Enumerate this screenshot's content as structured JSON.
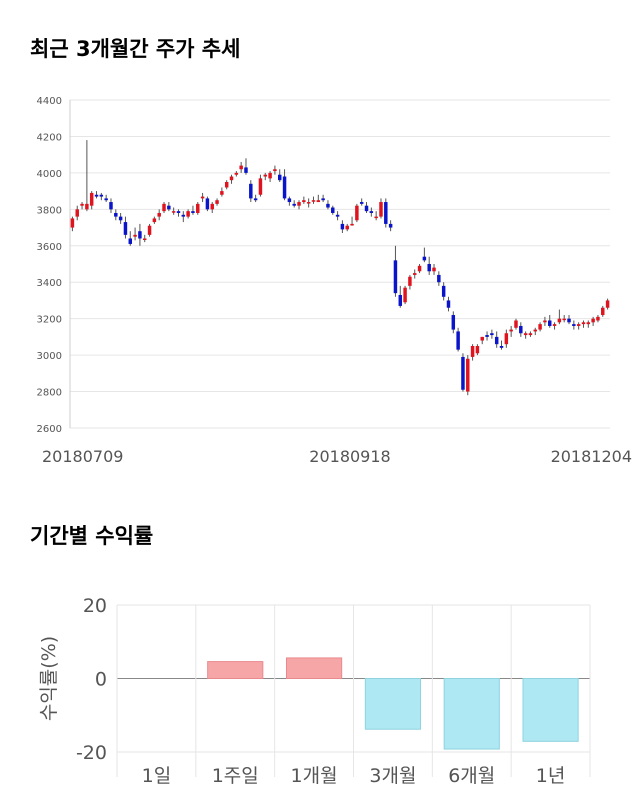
{
  "titles": {
    "price": "최근 3개월간 주가 추세",
    "returns": "기간별 수익률"
  },
  "colors": {
    "up": "#e0141e",
    "down": "#0a14c8",
    "positive_bar": "#f7a6a8",
    "negative_bar": "#aee8f2",
    "grid": "#e6e6e6"
  },
  "chart_data": [
    {
      "type": "candlestick",
      "title": "최근 3개월간 주가 추세",
      "ylim": [
        2600,
        4400
      ],
      "yticks": [
        2600,
        2800,
        3000,
        3200,
        3400,
        3600,
        3800,
        4000,
        4200,
        4400
      ],
      "xtick_labels": [
        "20180709",
        "20180918",
        "20181204"
      ],
      "grid": true,
      "candles": [
        [
          3700,
          3760,
          3680,
          3750
        ],
        [
          3760,
          3820,
          3740,
          3800
        ],
        [
          3820,
          3840,
          3800,
          3830
        ],
        [
          3800,
          4180,
          3790,
          3830
        ],
        [
          3820,
          3900,
          3800,
          3890
        ],
        [
          3880,
          3900,
          3860,
          3870
        ],
        [
          3880,
          3890,
          3850,
          3870
        ],
        [
          3860,
          3880,
          3840,
          3850
        ],
        [
          3840,
          3860,
          3780,
          3800
        ],
        [
          3780,
          3800,
          3740,
          3760
        ],
        [
          3760,
          3780,
          3720,
          3740
        ],
        [
          3730,
          3760,
          3640,
          3660
        ],
        [
          3640,
          3680,
          3600,
          3610
        ],
        [
          3650,
          3700,
          3630,
          3660
        ],
        [
          3680,
          3720,
          3600,
          3640
        ],
        [
          3640,
          3660,
          3620,
          3640
        ],
        [
          3660,
          3720,
          3650,
          3710
        ],
        [
          3730,
          3760,
          3720,
          3750
        ],
        [
          3760,
          3800,
          3740,
          3780
        ],
        [
          3790,
          3840,
          3780,
          3830
        ],
        [
          3820,
          3840,
          3790,
          3800
        ],
        [
          3790,
          3810,
          3770,
          3790
        ],
        [
          3790,
          3800,
          3760,
          3780
        ],
        [
          3770,
          3790,
          3730,
          3760
        ],
        [
          3760,
          3800,
          3750,
          3790
        ],
        [
          3790,
          3820,
          3770,
          3780
        ],
        [
          3780,
          3840,
          3770,
          3830
        ],
        [
          3860,
          3890,
          3840,
          3870
        ],
        [
          3860,
          3870,
          3790,
          3800
        ],
        [
          3800,
          3840,
          3780,
          3830
        ],
        [
          3830,
          3860,
          3820,
          3850
        ],
        [
          3880,
          3920,
          3870,
          3900
        ],
        [
          3920,
          3960,
          3910,
          3950
        ],
        [
          3960,
          3990,
          3940,
          3980
        ],
        [
          3990,
          4010,
          3980,
          4000
        ],
        [
          4020,
          4060,
          4000,
          4040
        ],
        [
          4030,
          4080,
          3990,
          4000
        ],
        [
          3940,
          3960,
          3840,
          3860
        ],
        [
          3860,
          3880,
          3840,
          3850
        ],
        [
          3880,
          3990,
          3870,
          3970
        ],
        [
          3980,
          4000,
          3960,
          3990
        ],
        [
          3970,
          4010,
          3950,
          4000
        ],
        [
          4010,
          4040,
          3990,
          4020
        ],
        [
          3990,
          4020,
          3950,
          3960
        ],
        [
          3980,
          4020,
          3850,
          3860
        ],
        [
          3860,
          3870,
          3820,
          3840
        ],
        [
          3830,
          3850,
          3810,
          3820
        ],
        [
          3820,
          3850,
          3800,
          3840
        ],
        [
          3840,
          3870,
          3830,
          3850
        ],
        [
          3840,
          3860,
          3810,
          3840
        ],
        [
          3850,
          3870,
          3830,
          3850
        ],
        [
          3840,
          3880,
          3840,
          3850
        ],
        [
          3860,
          3880,
          3840,
          3850
        ],
        [
          3830,
          3850,
          3800,
          3810
        ],
        [
          3810,
          3820,
          3770,
          3780
        ],
        [
          3770,
          3790,
          3740,
          3760
        ],
        [
          3720,
          3740,
          3670,
          3690
        ],
        [
          3690,
          3720,
          3680,
          3710
        ],
        [
          3720,
          3760,
          3710,
          3720
        ],
        [
          3740,
          3830,
          3730,
          3820
        ],
        [
          3840,
          3860,
          3820,
          3830
        ],
        [
          3820,
          3840,
          3780,
          3790
        ],
        [
          3790,
          3810,
          3760,
          3780
        ],
        [
          3760,
          3790,
          3740,
          3760
        ],
        [
          3760,
          3860,
          3750,
          3840
        ],
        [
          3840,
          3860,
          3700,
          3720
        ],
        [
          3720,
          3740,
          3680,
          3700
        ],
        [
          3520,
          3600,
          3320,
          3340
        ],
        [
          3330,
          3380,
          3260,
          3270
        ],
        [
          3290,
          3380,
          3280,
          3370
        ],
        [
          3380,
          3440,
          3360,
          3430
        ],
        [
          3440,
          3470,
          3420,
          3450
        ],
        [
          3460,
          3500,
          3450,
          3490
        ],
        [
          3540,
          3590,
          3510,
          3520
        ],
        [
          3500,
          3540,
          3440,
          3460
        ],
        [
          3460,
          3500,
          3440,
          3480
        ],
        [
          3440,
          3460,
          3380,
          3400
        ],
        [
          3380,
          3400,
          3300,
          3320
        ],
        [
          3300,
          3320,
          3240,
          3260
        ],
        [
          3220,
          3240,
          3120,
          3140
        ],
        [
          3130,
          3150,
          3020,
          3030
        ],
        [
          2990,
          3010,
          2800,
          2810
        ],
        [
          2800,
          3000,
          2780,
          2980
        ],
        [
          2990,
          3060,
          2970,
          3050
        ],
        [
          3010,
          3060,
          3000,
          3050
        ],
        [
          3080,
          3100,
          3060,
          3100
        ],
        [
          3110,
          3130,
          3080,
          3100
        ],
        [
          3120,
          3140,
          3090,
          3110
        ],
        [
          3100,
          3130,
          3040,
          3060
        ],
        [
          3050,
          3080,
          3030,
          3040
        ],
        [
          3060,
          3140,
          3040,
          3120
        ],
        [
          3130,
          3160,
          3100,
          3140
        ],
        [
          3150,
          3200,
          3140,
          3190
        ],
        [
          3160,
          3180,
          3100,
          3120
        ],
        [
          3110,
          3130,
          3090,
          3120
        ],
        [
          3110,
          3130,
          3100,
          3120
        ],
        [
          3130,
          3150,
          3110,
          3140
        ],
        [
          3140,
          3180,
          3130,
          3170
        ],
        [
          3180,
          3210,
          3160,
          3190
        ],
        [
          3190,
          3220,
          3150,
          3160
        ],
        [
          3160,
          3180,
          3140,
          3170
        ],
        [
          3180,
          3250,
          3170,
          3200
        ],
        [
          3200,
          3220,
          3180,
          3200
        ],
        [
          3200,
          3220,
          3170,
          3180
        ],
        [
          3170,
          3190,
          3140,
          3160
        ],
        [
          3160,
          3180,
          3140,
          3170
        ],
        [
          3170,
          3190,
          3150,
          3180
        ],
        [
          3170,
          3190,
          3150,
          3180
        ],
        [
          3180,
          3210,
          3160,
          3200
        ],
        [
          3190,
          3220,
          3180,
          3210
        ],
        [
          3220,
          3270,
          3210,
          3260
        ],
        [
          3260,
          3310,
          3250,
          3300
        ]
      ]
    },
    {
      "type": "bar",
      "title": "기간별 수익률",
      "ylabel": "수익률(%)",
      "ylim": [
        -20,
        20
      ],
      "yticks": [
        -20,
        0,
        20
      ],
      "grid": true,
      "categories": [
        "1일",
        "1주일",
        "1개월",
        "3개월",
        "6개월",
        "1년"
      ],
      "values": [
        0.0,
        4.6,
        5.6,
        -13.8,
        -19.2,
        -17.1
      ]
    }
  ]
}
